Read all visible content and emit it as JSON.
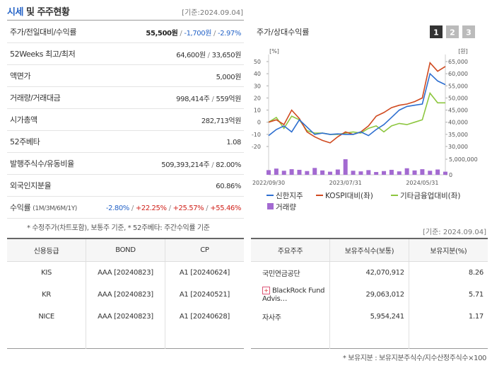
{
  "header": {
    "title_main": "시세",
    "title_rest": "및 주주현황",
    "date": "[기준:2024.09.04]"
  },
  "summary": {
    "rows": [
      {
        "label": "주가/전일대비/수익률",
        "parts": [
          {
            "text": "55,500원",
            "tone": "strong"
          },
          {
            "text": "/",
            "tone": "sep"
          },
          {
            "text": "-1,700원",
            "tone": "down"
          },
          {
            "text": "/",
            "tone": "sep"
          },
          {
            "text": "-2.97%",
            "tone": "down"
          }
        ]
      },
      {
        "label": "52Weeks 최고/최저",
        "parts": [
          {
            "text": "64,600원",
            "tone": "plain"
          },
          {
            "text": "/",
            "tone": "sep"
          },
          {
            "text": "33,650원",
            "tone": "plain"
          }
        ]
      },
      {
        "label": "액면가",
        "parts": [
          {
            "text": "5,000원",
            "tone": "plain"
          }
        ]
      },
      {
        "label": "거래량/거래대금",
        "parts": [
          {
            "text": "998,414주",
            "tone": "plain"
          },
          {
            "text": "/",
            "tone": "sep"
          },
          {
            "text": "559억원",
            "tone": "plain"
          }
        ]
      },
      {
        "label": "시가총액",
        "parts": [
          {
            "text": "282,713억원",
            "tone": "plain"
          }
        ]
      },
      {
        "label": "52주베타",
        "parts": [
          {
            "text": "1.08",
            "tone": "plain"
          }
        ]
      },
      {
        "label": "발행주식수/유동비율",
        "parts": [
          {
            "text": "509,393,214주",
            "tone": "plain"
          },
          {
            "text": "/",
            "tone": "sep"
          },
          {
            "text": "82.00%",
            "tone": "plain"
          }
        ]
      },
      {
        "label": "외국인지분율",
        "parts": [
          {
            "text": "60.86%",
            "tone": "plain"
          }
        ]
      },
      {
        "label": "수익률",
        "sub": "(1M/3M/6M/1Y)",
        "parts": [
          {
            "text": "-2.80%",
            "tone": "down"
          },
          {
            "text": "/",
            "tone": "sep"
          },
          {
            "text": "+22.25%",
            "tone": "up"
          },
          {
            "text": "/",
            "tone": "sep"
          },
          {
            "text": "+25.57%",
            "tone": "up"
          },
          {
            "text": "/",
            "tone": "sep"
          },
          {
            "text": "+55.46%",
            "tone": "up"
          }
        ]
      }
    ],
    "note": "* 수정주가(차트포함), 보통주 기준, * 52주베타: 주간수익률 기준"
  },
  "chart_data": {
    "type": "line",
    "title": "주가/상대수익률",
    "tabs": [
      "1",
      "2",
      "3"
    ],
    "y_unit": "[%]",
    "y2_unit": "[원]",
    "x": [
      "2022/09/30",
      null,
      null,
      null,
      null,
      null,
      null,
      null,
      null,
      null,
      "2023/07/31",
      null,
      null,
      null,
      null,
      null,
      null,
      null,
      null,
      null,
      "2024/05/31",
      null,
      null,
      null
    ],
    "ylim": [
      -20,
      50
    ],
    "yticks": [
      -20,
      -10,
      0,
      10,
      20,
      30,
      40,
      50
    ],
    "y2lim": [
      30000,
      65000
    ],
    "y2ticks": [
      {
        "value": 30000,
        "label": "30,000"
      },
      {
        "value": 35000,
        "label": "35,000"
      },
      {
        "value": 40000,
        "label": "40,000"
      },
      {
        "value": 45000,
        "label": "45,000"
      },
      {
        "value": 50000,
        "label": "50,000"
      },
      {
        "value": 55000,
        "label": "55,000"
      },
      {
        "value": 60000,
        "label": "60,000"
      },
      {
        "value": 65000,
        "label": "65,000"
      }
    ],
    "volume_lim": [
      0,
      5000000
    ],
    "volume_ticks": [
      0,
      {
        "value": 5000000,
        "label": "5,000,000"
      }
    ],
    "series": [
      {
        "name": "신한지주",
        "color": "#2e6fd0",
        "axis": "y2",
        "values": [
          34500,
          37000,
          38500,
          36000,
          41000,
          38000,
          35000,
          35500,
          35000,
          35200,
          35000,
          35000,
          36000,
          34500,
          37000,
          39000,
          42000,
          45000,
          46500,
          47000,
          47500,
          60000,
          57000,
          55500
        ]
      },
      {
        "name": "KOSPI대비(좌)",
        "color": "#d04a20",
        "values": [
          0,
          2,
          -2,
          10,
          3,
          -8,
          -12,
          -15,
          -17,
          -12,
          -8,
          -10,
          -8,
          -3,
          5,
          8,
          12,
          14,
          15,
          17,
          20,
          49,
          42,
          46
        ]
      },
      {
        "name": "기타금융업대비(좌)",
        "color": "#8dc63f",
        "values": [
          0,
          4,
          -5,
          5,
          2,
          -7,
          -9,
          -9,
          -10,
          -10,
          -9,
          -8,
          -9,
          -5,
          -3,
          -8,
          -3,
          -1,
          -2,
          0,
          2,
          24,
          16,
          16
        ]
      }
    ],
    "volume": {
      "name": "거래량",
      "color": "#a36ad1",
      "values": [
        1500000,
        2000000,
        1300000,
        1800000,
        1600000,
        1200000,
        2200000,
        1400000,
        1000000,
        1700000,
        5000000,
        1300000,
        1100000,
        1500000,
        900000,
        1200000,
        1600000,
        1100000,
        2100000,
        1400000,
        1800000,
        1300000,
        1700000,
        1000000
      ]
    }
  },
  "ratings": {
    "columns": [
      "신용등급",
      "BOND",
      "CP"
    ],
    "rows": [
      [
        "KIS",
        "AAA [20240823]",
        "A1 [20240624]"
      ],
      [
        "KR",
        "AAA [20240823]",
        "A1 [20240521]"
      ],
      [
        "NICE",
        "AAA [20240823]",
        "A1 [20240628]"
      ]
    ]
  },
  "holders": {
    "date": "[기준: 2024.09.04]",
    "columns": [
      "주요주주",
      "보유주식수(보통)",
      "보유지분(%)"
    ],
    "rows": [
      [
        "국민연금공단",
        "42,070,912",
        "8.26"
      ],
      [
        "BlackRock Fund Advis…",
        "29,063,012",
        "5.71"
      ],
      [
        "자사주",
        "5,954,241",
        "1.17"
      ]
    ],
    "note": "* 보유지분 : 보유지분주식수/지수산정주식수×100"
  }
}
